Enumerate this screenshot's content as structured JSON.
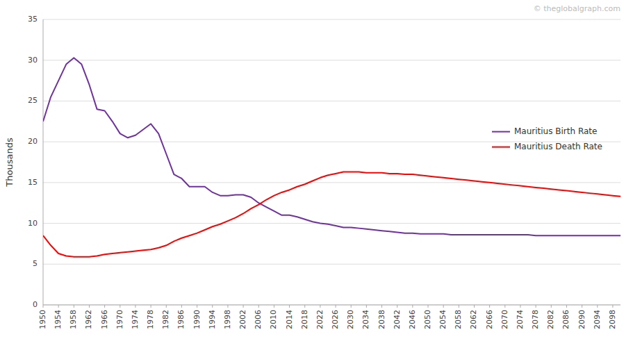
{
  "chart_data": {
    "type": "line",
    "y_label": "Thousands",
    "annotations": [
      "© theglobalgraph.com"
    ],
    "x": [
      1950,
      1952,
      1954,
      1956,
      1958,
      1960,
      1962,
      1964,
      1966,
      1968,
      1970,
      1972,
      1974,
      1976,
      1978,
      1980,
      1982,
      1984,
      1986,
      1988,
      1990,
      1992,
      1994,
      1996,
      1998,
      2000,
      2002,
      2004,
      2006,
      2008,
      2010,
      2012,
      2014,
      2016,
      2018,
      2020,
      2022,
      2024,
      2026,
      2028,
      2030,
      2032,
      2034,
      2036,
      2038,
      2040,
      2042,
      2044,
      2046,
      2048,
      2050,
      2052,
      2054,
      2056,
      2058,
      2060,
      2062,
      2064,
      2066,
      2068,
      2070,
      2072,
      2074,
      2076,
      2078,
      2080,
      2082,
      2084,
      2086,
      2088,
      2090,
      2092,
      2094,
      2096,
      2098,
      2100
    ],
    "series": [
      {
        "name": "Mauritius Birth Rate",
        "color": "#7030A0",
        "values": [
          22.5,
          25.5,
          27.5,
          29.5,
          30.3,
          29.5,
          27.0,
          24.0,
          23.8,
          22.5,
          21.0,
          20.5,
          20.8,
          21.5,
          22.2,
          21.0,
          18.5,
          16.0,
          15.5,
          14.5,
          14.5,
          14.5,
          13.8,
          13.4,
          13.4,
          13.5,
          13.5,
          13.2,
          12.5,
          12.0,
          11.5,
          11.0,
          11.0,
          10.8,
          10.5,
          10.2,
          10.0,
          9.9,
          9.7,
          9.5,
          9.5,
          9.4,
          9.3,
          9.2,
          9.1,
          9.0,
          8.9,
          8.8,
          8.8,
          8.7,
          8.7,
          8.7,
          8.7,
          8.6,
          8.6,
          8.6,
          8.6,
          8.6,
          8.6,
          8.6,
          8.6,
          8.6,
          8.6,
          8.6,
          8.5,
          8.5,
          8.5,
          8.5,
          8.5,
          8.5,
          8.5,
          8.5,
          8.5,
          8.5,
          8.5,
          8.5
        ]
      },
      {
        "name": "Mauritius Death Rate",
        "color": "#FF0000",
        "values": [
          8.5,
          7.3,
          6.3,
          6.0,
          5.9,
          5.9,
          5.9,
          6.0,
          6.2,
          6.3,
          6.4,
          6.5,
          6.6,
          6.7,
          6.8,
          7.0,
          7.3,
          7.8,
          8.2,
          8.5,
          8.8,
          9.2,
          9.6,
          9.9,
          10.3,
          10.7,
          11.2,
          11.8,
          12.3,
          12.9,
          13.4,
          13.8,
          14.1,
          14.5,
          14.8,
          15.2,
          15.6,
          15.9,
          16.1,
          16.3,
          16.3,
          16.3,
          16.2,
          16.2,
          16.2,
          16.1,
          16.1,
          16.0,
          16.0,
          15.9,
          15.8,
          15.7,
          15.6,
          15.5,
          15.4,
          15.3,
          15.2,
          15.1,
          15.0,
          14.9,
          14.8,
          14.7,
          14.6,
          14.5,
          14.4,
          14.3,
          14.2,
          14.1,
          14.0,
          13.9,
          13.8,
          13.7,
          13.6,
          13.5,
          13.4,
          13.3
        ]
      }
    ],
    "xlim": [
      1950,
      2100
    ],
    "xticks": [
      1950,
      1954,
      1958,
      1962,
      1966,
      1970,
      1974,
      1978,
      1982,
      1986,
      1990,
      1994,
      1998,
      2002,
      2006,
      2010,
      2014,
      2018,
      2022,
      2026,
      2030,
      2034,
      2038,
      2042,
      2046,
      2050,
      2054,
      2058,
      2062,
      2066,
      2070,
      2074,
      2078,
      2082,
      2086,
      2090,
      2094,
      2098
    ],
    "ylim": [
      0,
      35
    ],
    "yticks": [
      0,
      5,
      10,
      15,
      20,
      25,
      30,
      35
    ],
    "grid": true,
    "legend": "right"
  }
}
